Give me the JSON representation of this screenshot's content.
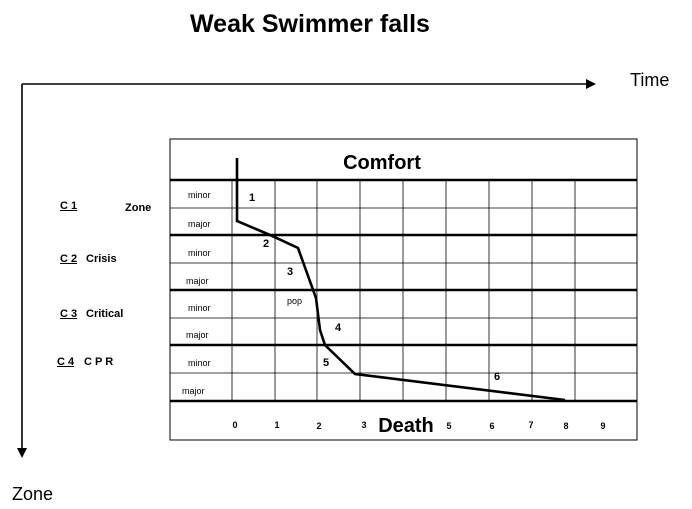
{
  "title": "Weak  Swimmer falls",
  "axis_labels": {
    "time": "Time",
    "zone": "Zone"
  },
  "header": "Comfort",
  "footer": "Death",
  "row_labels": [
    {
      "code": "C 1",
      "name": ""
    },
    {
      "code": "C 2",
      "name": "Crisis"
    },
    {
      "code": "C 3",
      "name": "Critical"
    },
    {
      "code": "C 4",
      "name": "C P R"
    }
  ],
  "zone_word": "Zone",
  "sub_rows": [
    "minor",
    "major",
    "minor",
    "major",
    "minor",
    "major",
    "minor",
    "major"
  ],
  "x_ticks": [
    "0",
    "1",
    "2",
    "3",
    "5",
    "6",
    "7",
    "8",
    "9"
  ],
  "stage_labels": [
    "1",
    "2",
    "3",
    "pop",
    "4",
    "5",
    "6"
  ]
}
